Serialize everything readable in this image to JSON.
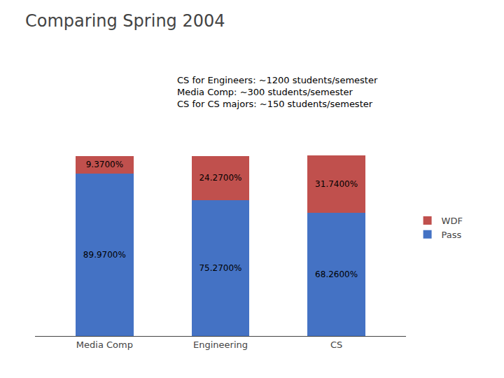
{
  "chart_data": {
    "type": "bar",
    "stacked": true,
    "title": "Comparing Spring 2004",
    "annotation": "CS for Engineers: ~1200 students/semester\nMedia Comp: ~300 students/semester\nCS for CS majors: ~150 students/semester",
    "categories": [
      "Media Comp",
      "Engineering",
      "CS"
    ],
    "series": [
      {
        "name": "Pass",
        "color": "#4472C4",
        "values": [
          89.97,
          75.27,
          68.26
        ],
        "value_labels": [
          "89.9700%",
          "75.2700%",
          "68.2600%"
        ]
      },
      {
        "name": "WDF",
        "color": "#C0504D",
        "values": [
          9.37,
          24.27,
          31.74
        ],
        "value_labels": [
          "9.3700%",
          "24.2700%",
          "31.7400%"
        ]
      }
    ],
    "ylim": [
      0,
      120
    ],
    "grid": false,
    "legend": "right",
    "data_labels": true,
    "tick_labels": "x"
  }
}
